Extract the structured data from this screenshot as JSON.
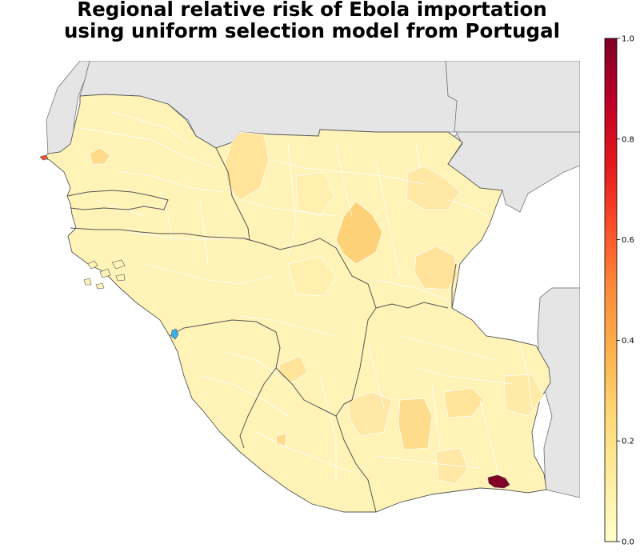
{
  "title": {
    "line1": "Regional relative risk of Ebola importation",
    "line2": "using uniform selection model from Portugal"
  },
  "colorbar": {
    "ticks": [
      "0.0",
      "0.2",
      "0.4",
      "0.6",
      "0.8",
      "1.0"
    ],
    "min": 0.0,
    "max": 1.0,
    "colormap": "YlOrRd",
    "stops": [
      "#ffffcc",
      "#ffeda0",
      "#fed976",
      "#feb24c",
      "#fd8d3c",
      "#fc4e2a",
      "#e31a1c",
      "#bd0026",
      "#800026"
    ]
  },
  "colors": {
    "background_land": "#e5e5e5",
    "region_base": "#fff3b8",
    "region_boundary": "#ffffff",
    "country_boundary": "#555555",
    "highlight_max": "#800026",
    "highlight_source": "#3ab0e8"
  }
}
